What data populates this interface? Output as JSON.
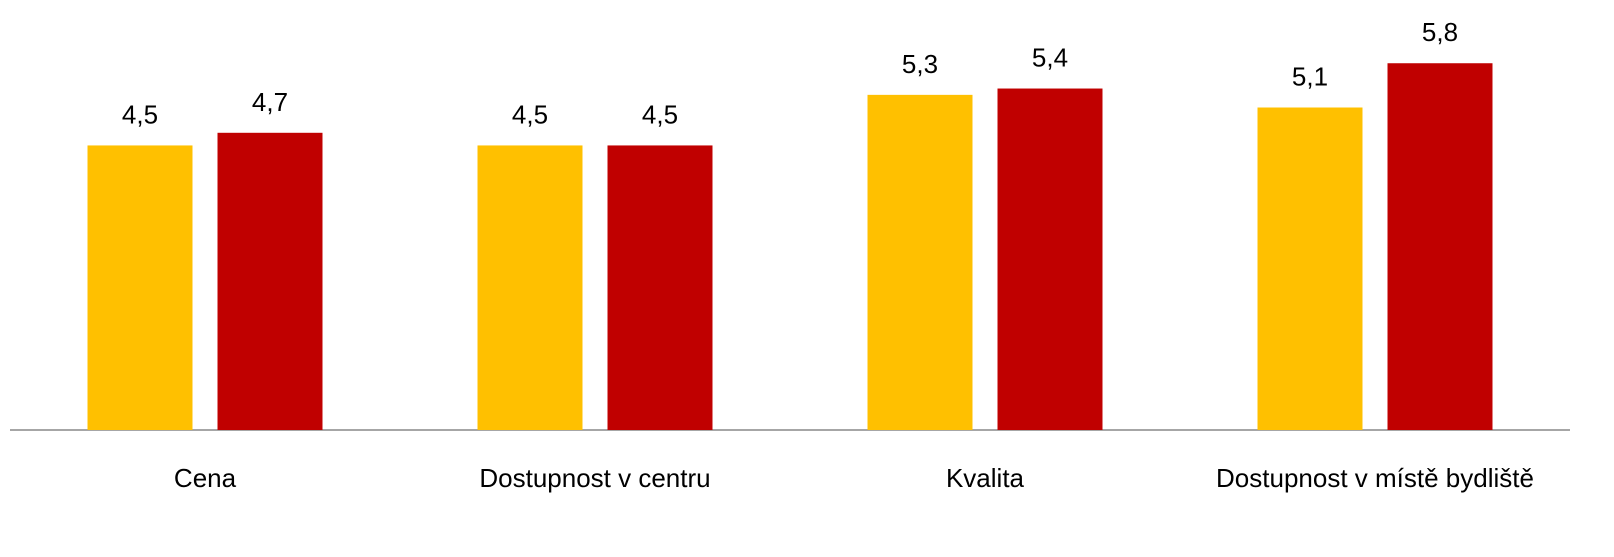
{
  "chart_data": {
    "type": "bar",
    "categories": [
      "Cena",
      "Dostupnost v centru",
      "Kvalita",
      "Dostupnost v místě bydliště"
    ],
    "series": [
      {
        "color": "#FFC000",
        "values": [
          4.5,
          4.5,
          5.3,
          5.1
        ],
        "value_labels": [
          "4,5",
          "4,5",
          "5,3",
          "5,1"
        ]
      },
      {
        "color": "#C00000",
        "values": [
          4.7,
          4.5,
          5.4,
          5.8
        ],
        "value_labels": [
          "4,7",
          "4,5",
          "5,4",
          "5,8"
        ]
      }
    ],
    "ylim": [
      0,
      6.8
    ],
    "grid": false
  }
}
